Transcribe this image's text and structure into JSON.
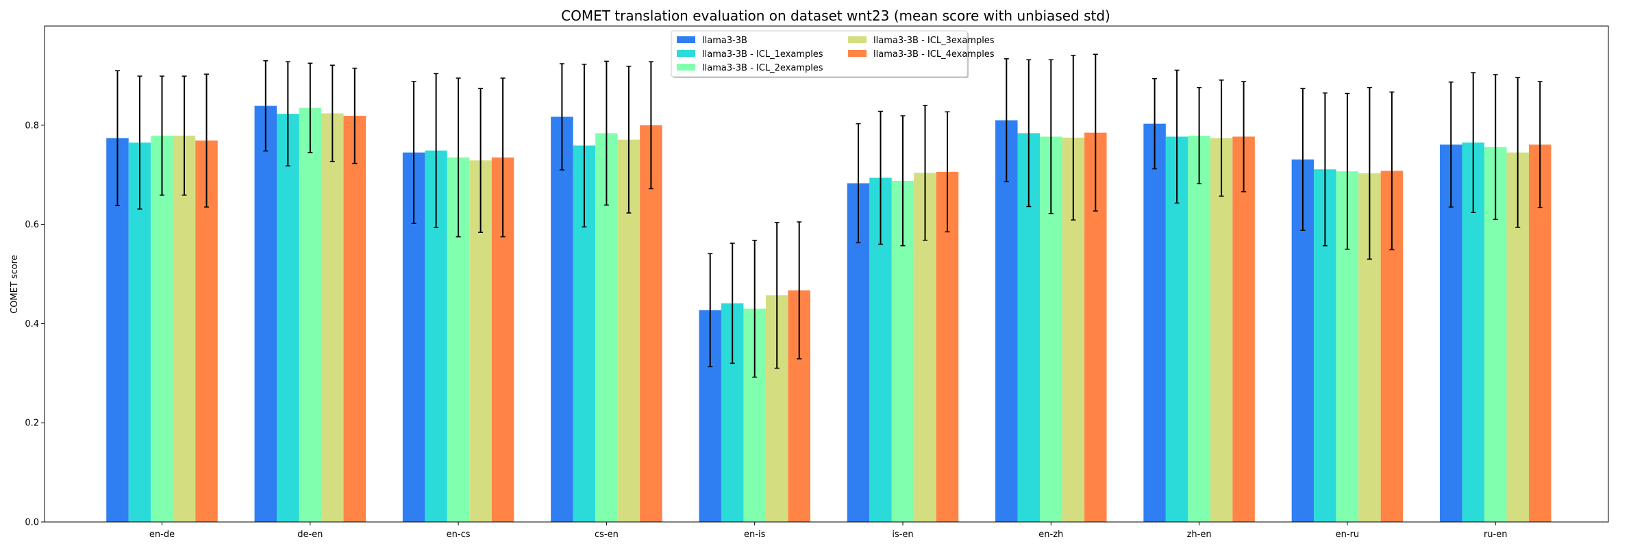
{
  "chart_data": {
    "type": "bar",
    "title": "COMET translation evaluation on dataset wnt23 (mean score with unbiased std)",
    "xlabel": "",
    "ylabel": "COMET score",
    "ylim": [
      0,
      1.0
    ],
    "yticks": [
      "0.0",
      "0.2",
      "0.4",
      "0.6",
      "0.8"
    ],
    "grid": false,
    "legend_position": "top-center",
    "categories": [
      "en-de",
      "de-en",
      "en-cs",
      "cs-en",
      "en-is",
      "is-en",
      "en-zh",
      "zh-en",
      "en-ru",
      "ru-en"
    ],
    "series": [
      {
        "name": "llama3-3B",
        "color": "#2f7ff2",
        "values": [
          0.774,
          0.839,
          0.745,
          0.817,
          0.427,
          0.683,
          0.81,
          0.803,
          0.731,
          0.761
        ],
        "std": [
          0.136,
          0.091,
          0.143,
          0.107,
          0.114,
          0.12,
          0.124,
          0.091,
          0.143,
          0.126
        ]
      },
      {
        "name": "llama3-3B - ICL_1examples",
        "color": "#2bdbd9",
        "values": [
          0.765,
          0.823,
          0.749,
          0.759,
          0.441,
          0.694,
          0.784,
          0.777,
          0.711,
          0.765
        ],
        "std": [
          0.134,
          0.105,
          0.155,
          0.164,
          0.121,
          0.134,
          0.148,
          0.134,
          0.154,
          0.141
        ]
      },
      {
        "name": "llama3-3B - ICL_2examples",
        "color": "#80ffae",
        "values": [
          0.779,
          0.835,
          0.735,
          0.784,
          0.43,
          0.688,
          0.777,
          0.779,
          0.707,
          0.756
        ],
        "std": [
          0.12,
          0.09,
          0.16,
          0.145,
          0.138,
          0.131,
          0.155,
          0.097,
          0.157,
          0.146
        ]
      },
      {
        "name": "llama3-3B - ICL_3examples",
        "color": "#d4de80",
        "values": [
          0.779,
          0.824,
          0.729,
          0.771,
          0.457,
          0.704,
          0.775,
          0.774,
          0.703,
          0.745
        ],
        "std": [
          0.12,
          0.097,
          0.145,
          0.148,
          0.147,
          0.136,
          0.166,
          0.117,
          0.173,
          0.151
        ]
      },
      {
        "name": "llama3-3B - ICL_4examples",
        "color": "#ff8446",
        "values": [
          0.769,
          0.819,
          0.735,
          0.8,
          0.467,
          0.706,
          0.785,
          0.777,
          0.708,
          0.761
        ],
        "std": [
          0.134,
          0.096,
          0.16,
          0.128,
          0.138,
          0.121,
          0.158,
          0.111,
          0.159,
          0.127
        ]
      }
    ]
  }
}
